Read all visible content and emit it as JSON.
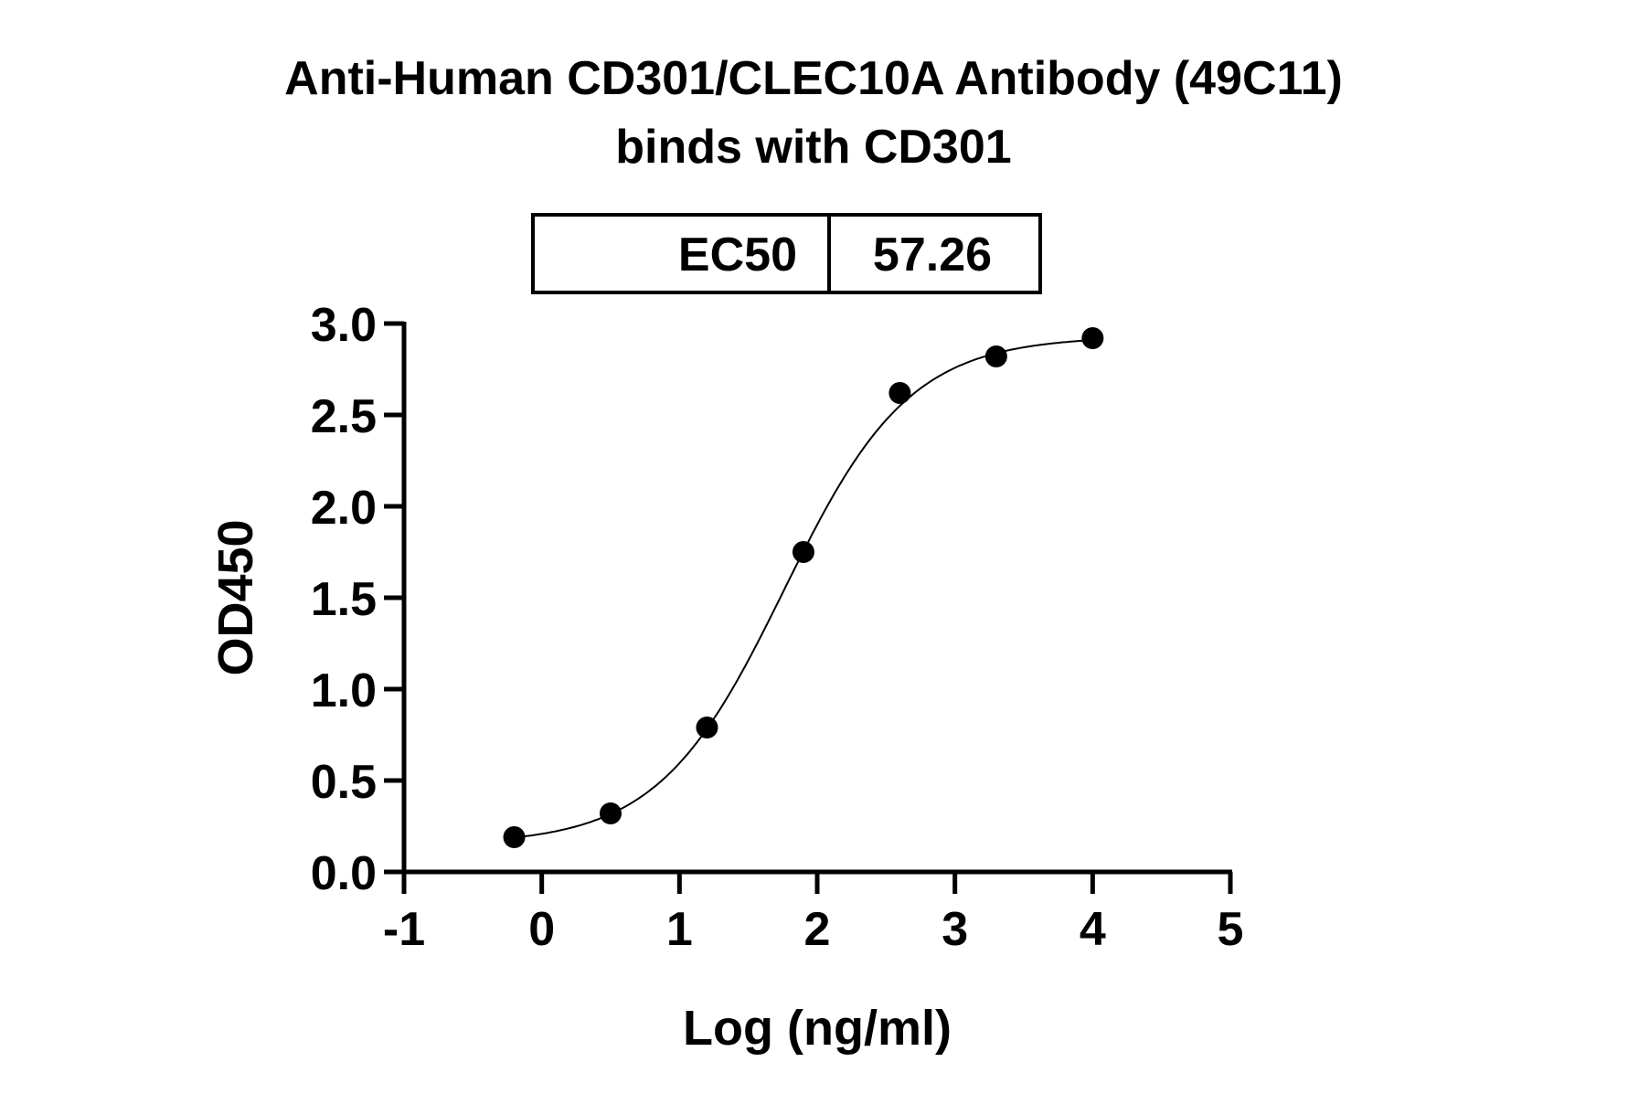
{
  "chart_data": {
    "type": "scatter",
    "title": "Anti-Human CD301/CLEC10A Antibody (49C11)",
    "subtitle": "binds with CD301",
    "xlabel": "Log (ng/ml)",
    "ylabel": "OD450",
    "xlim": [
      -1,
      5
    ],
    "ylim": [
      0,
      3.0
    ],
    "xticks": [
      "-1",
      "0",
      "1",
      "2",
      "3",
      "4",
      "5"
    ],
    "yticks": [
      "0.0",
      "0.5",
      "1.0",
      "1.5",
      "2.0",
      "2.5",
      "3.0"
    ],
    "grid": false,
    "x": [
      -0.2,
      0.5,
      1.2,
      1.9,
      2.6,
      3.3,
      4.0
    ],
    "y": [
      0.19,
      0.32,
      0.79,
      1.75,
      2.62,
      2.82,
      2.92
    ],
    "fit": {
      "model": "4PL",
      "bottom": 0.15,
      "top": 2.93,
      "hill": 0.95
    },
    "ec50_table": {
      "label": "EC50",
      "value": "57.26"
    },
    "colors": {
      "points": "#000000",
      "curve": "#000000"
    }
  }
}
